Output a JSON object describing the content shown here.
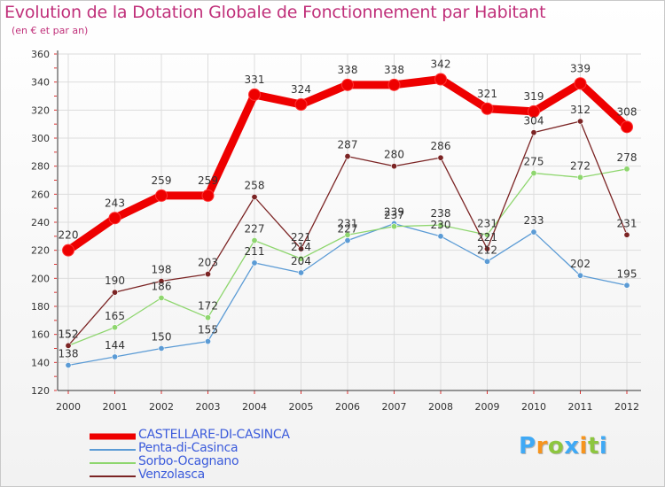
{
  "chart_data": {
    "type": "line",
    "title": "Evolution de la Dotation Globale de Fonctionnement par Habitant",
    "subtitle": "(en € et par an)",
    "xlabel": "",
    "ylabel": "",
    "ylim": [
      120,
      360
    ],
    "yticks": [
      "120",
      "140",
      "160",
      "180",
      "200",
      "220",
      "240",
      "260",
      "280",
      "300",
      "320",
      "340",
      "360"
    ],
    "categories": [
      "2000",
      "2001",
      "2002",
      "2003",
      "2004",
      "2005",
      "2006",
      "2007",
      "2008",
      "2009",
      "2010",
      "2011",
      "2012"
    ],
    "grid": true,
    "legend_position": "bottom-left",
    "series": [
      {
        "name": "CASTELLARE-DI-CASINCA",
        "color": "#ee0000",
        "values": [
          220,
          243,
          259,
          259,
          331,
          324,
          338,
          338,
          342,
          321,
          319,
          339,
          308
        ],
        "labels": [
          "220",
          "243",
          "259",
          "259",
          "331",
          "324",
          "338",
          "338",
          "342",
          "321",
          "319",
          "339",
          "308"
        ]
      },
      {
        "name": "Penta-di-Casinca",
        "color": "#5b9bd5",
        "values": [
          138,
          144,
          150,
          155,
          211,
          204,
          227,
          239,
          230,
          212,
          233,
          202,
          195
        ],
        "labels": [
          "138",
          "144",
          "150",
          "155",
          "211",
          "204",
          "227",
          "239",
          "230",
          "212",
          "233",
          "202",
          "195"
        ]
      },
      {
        "name": "Sorbo-Ocagnano",
        "color": "#8ed66e",
        "values": [
          152,
          165,
          186,
          172,
          227,
          214,
          231,
          237,
          238,
          231,
          275,
          272,
          278
        ],
        "labels": [
          "152",
          "165",
          "186",
          "172",
          "227",
          "214",
          "231",
          "237",
          "238",
          "231",
          "275",
          "272",
          "278"
        ]
      },
      {
        "name": "Venzolasca",
        "color": "#7b2424",
        "values": [
          152,
          190,
          198,
          203,
          258,
          221,
          287,
          280,
          286,
          221,
          304,
          312,
          231
        ],
        "labels": [
          "152",
          "190",
          "198",
          "203",
          "258",
          "221",
          "287",
          "280",
          "286",
          "221",
          "304",
          "312",
          "231"
        ]
      }
    ]
  },
  "legend": {
    "items": [
      {
        "label": "CASTELLARE-DI-CASINCA",
        "color": "#ee0000",
        "text_color": "#3b5bdb"
      },
      {
        "label": "Penta-di-Casinca",
        "color": "#5b9bd5",
        "text_color": "#3b5bdb"
      },
      {
        "label": "Sorbo-Ocagnano",
        "color": "#8ed66e",
        "text_color": "#3b5bdb"
      },
      {
        "label": "Venzolasca",
        "color": "#7b2424",
        "text_color": "#3b5bdb"
      }
    ]
  },
  "logo": {
    "text": "Proxiti",
    "letters": [
      "P",
      "r",
      "o",
      "x",
      "i",
      "t",
      "i"
    ],
    "colors": [
      "#3fa9f5",
      "#f7941d",
      "#8dc63f",
      "#3fa9f5",
      "#f7941d",
      "#8dc63f",
      "#3fa9f5"
    ]
  }
}
